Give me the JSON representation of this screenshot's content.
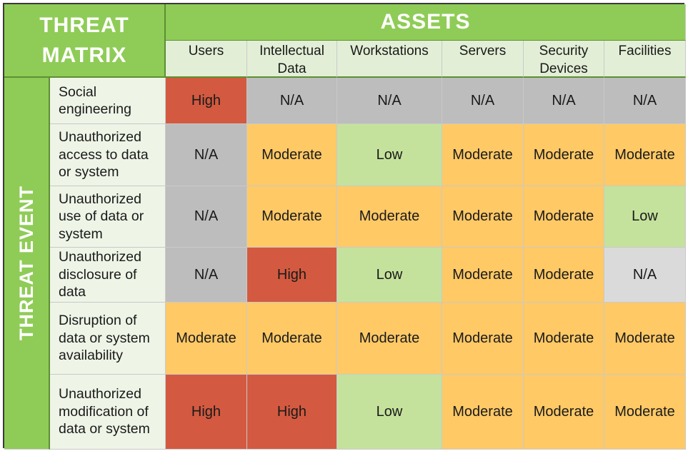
{
  "title": {
    "line1": "THREAT",
    "line2": "MATRIX"
  },
  "assets_label": "ASSETS",
  "threat_event_label": "THREAT EVENT",
  "assets": [
    {
      "line1": "Users",
      "line2": ""
    },
    {
      "line1": "Intellectual",
      "line2": "Data"
    },
    {
      "line1": "Workstations",
      "line2": ""
    },
    {
      "line1": "Servers",
      "line2": ""
    },
    {
      "line1": "Security",
      "line2": "Devices"
    },
    {
      "line1": "Facilities",
      "line2": ""
    }
  ],
  "threats": [
    {
      "label": "Social engineering",
      "levels": [
        "High",
        "N/A",
        "N/A",
        "N/A",
        "N/A",
        "N/A"
      ]
    },
    {
      "label": "Unauthorized access to data or system",
      "levels": [
        "N/A",
        "Moderate",
        "Low",
        "Moderate",
        "Moderate",
        "Moderate"
      ]
    },
    {
      "label": "Unauthorized use of data or system",
      "levels": [
        "N/A",
        "Moderate",
        "Moderate",
        "Moderate",
        "Moderate",
        "Low"
      ]
    },
    {
      "label": "Unauthorized disclosure of data",
      "levels": [
        "N/A",
        "High",
        "Low",
        "Moderate",
        "Moderate",
        "N/A"
      ]
    },
    {
      "label": "Disruption of data or system availability",
      "levels": [
        "Moderate",
        "Moderate",
        "Moderate",
        "Moderate",
        "Moderate",
        "Moderate"
      ]
    },
    {
      "label": "Unauthorized modification of data or system",
      "levels": [
        "High",
        "High",
        "Low",
        "Moderate",
        "Moderate",
        "Moderate"
      ]
    }
  ],
  "level_colors": {
    "High": "#d35a40",
    "Moderate": "#ffc966",
    "Low": "#c4e29c",
    "N/A": "#bdbdbd"
  }
}
